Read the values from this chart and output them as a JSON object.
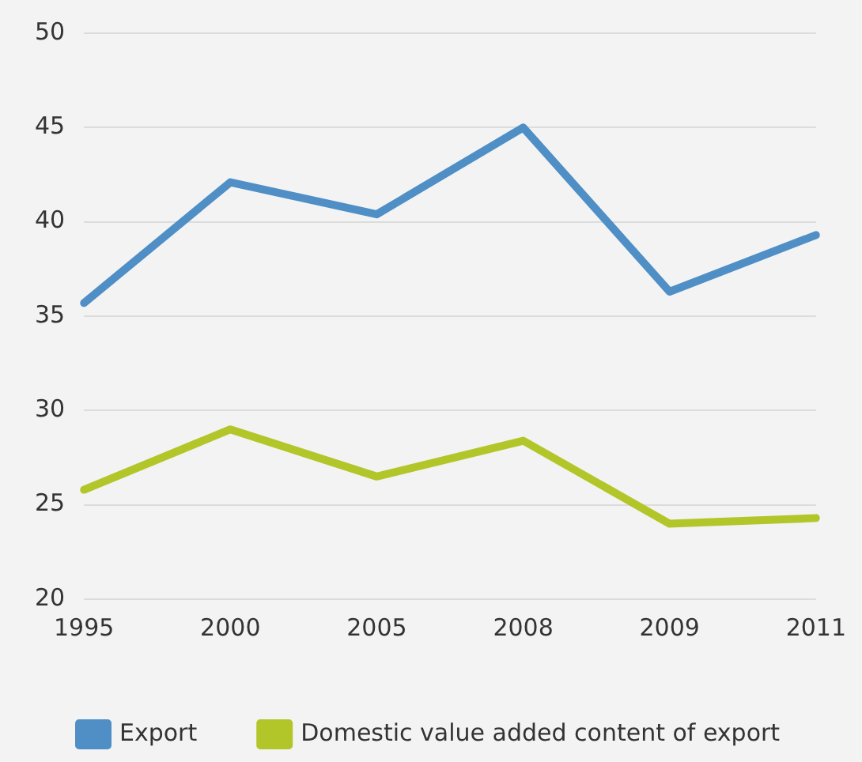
{
  "chart_data": {
    "type": "line",
    "categories": [
      "1995",
      "2000",
      "2005",
      "2008",
      "2009",
      "2011"
    ],
    "series": [
      {
        "name": "Export",
        "color": "#4f8fc6",
        "values": [
          35.7,
          42.1,
          40.4,
          45.0,
          36.3,
          39.3
        ]
      },
      {
        "name": "Domestic value added content of export",
        "color": "#b2c62a",
        "values": [
          25.8,
          29.0,
          26.5,
          28.4,
          24.0,
          24.3
        ]
      }
    ],
    "ylim": [
      20,
      50
    ],
    "yticks": [
      20,
      25,
      30,
      35,
      40,
      45,
      50
    ],
    "grid": "y",
    "legend": "bottom",
    "marker": "none",
    "line_style": "solid"
  }
}
